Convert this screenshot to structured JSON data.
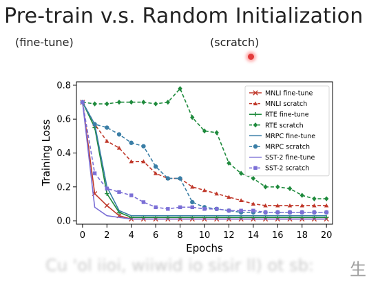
{
  "slide": {
    "title": "Pre-train v.s. Random Initialization",
    "subtitle_left": "(fine-tune)",
    "subtitle_right": "(scratch)",
    "caption": "Cu 'ol iioi, wiiwid io sisir ll) ot sb:",
    "caption_char": "生"
  },
  "chart_data": {
    "type": "line",
    "xlabel": "Epochs",
    "ylabel": "Training Loss",
    "xlim": [
      -0.5,
      20.5
    ],
    "ylim": [
      -0.02,
      0.82
    ],
    "xticks": [
      0,
      2,
      4,
      6,
      8,
      10,
      12,
      14,
      16,
      18,
      20
    ],
    "yticks": [
      0.0,
      0.2,
      0.4,
      0.6,
      0.8
    ],
    "ytick_labels": [
      "0.0",
      "0.2",
      "0.4",
      "0.6",
      "0.8"
    ],
    "grid": false,
    "legend_position": "top-right",
    "x": [
      0,
      1,
      2,
      3,
      4,
      5,
      6,
      7,
      8,
      9,
      10,
      11,
      12,
      13,
      14,
      15,
      16,
      17,
      18,
      19,
      20
    ],
    "series": [
      {
        "name": "MNLI fine-tune",
        "color": "#c0392b",
        "marker": "x",
        "dashed": false,
        "values": [
          0.7,
          0.16,
          0.09,
          0.03,
          0.01,
          0.01,
          0.01,
          0.01,
          0.01,
          0.01,
          0.01,
          0.01,
          0.01,
          0.01,
          0.01,
          0.01,
          0.01,
          0.01,
          0.01,
          0.01,
          0.01
        ]
      },
      {
        "name": "MNLI scratch",
        "color": "#c0392b",
        "marker": "triangle",
        "dashed": true,
        "values": [
          0.7,
          0.57,
          0.47,
          0.43,
          0.35,
          0.35,
          0.28,
          0.25,
          0.25,
          0.2,
          0.18,
          0.16,
          0.14,
          0.12,
          0.1,
          0.09,
          0.09,
          0.09,
          0.09,
          0.09,
          0.09
        ]
      },
      {
        "name": "RTE fine-tune",
        "color": "#1e8a3c",
        "marker": "plus",
        "dashed": false,
        "values": [
          0.7,
          0.55,
          0.16,
          0.05,
          0.02,
          0.02,
          0.02,
          0.02,
          0.02,
          0.02,
          0.02,
          0.02,
          0.02,
          0.02,
          0.02,
          0.02,
          0.02,
          0.02,
          0.02,
          0.02,
          0.02
        ]
      },
      {
        "name": "RTE scratch",
        "color": "#1e8a3c",
        "marker": "diamond",
        "dashed": true,
        "values": [
          0.7,
          0.69,
          0.69,
          0.7,
          0.7,
          0.7,
          0.69,
          0.7,
          0.78,
          0.61,
          0.53,
          0.52,
          0.34,
          0.28,
          0.25,
          0.2,
          0.2,
          0.19,
          0.15,
          0.13,
          0.13
        ]
      },
      {
        "name": "MRPC fine-tune",
        "color": "#3a7ea6",
        "marker": "line",
        "dashed": false,
        "values": [
          0.7,
          0.57,
          0.2,
          0.06,
          0.03,
          0.03,
          0.03,
          0.03,
          0.03,
          0.03,
          0.03,
          0.03,
          0.03,
          0.03,
          0.03,
          0.03,
          0.03,
          0.03,
          0.03,
          0.03,
          0.03
        ]
      },
      {
        "name": "MRPC scratch",
        "color": "#3a7ea6",
        "marker": "circle",
        "dashed": true,
        "values": [
          0.7,
          0.57,
          0.55,
          0.51,
          0.46,
          0.44,
          0.32,
          0.25,
          0.25,
          0.11,
          0.08,
          0.07,
          0.06,
          0.05,
          0.05,
          0.05,
          0.05,
          0.05,
          0.05,
          0.05,
          0.05
        ]
      },
      {
        "name": "SST-2 fine-tune",
        "color": "#7b6fd6",
        "marker": "none",
        "dashed": false,
        "values": [
          0.7,
          0.08,
          0.03,
          0.02,
          0.01,
          0.01,
          0.01,
          0.01,
          0.01,
          0.01,
          0.01,
          0.01,
          0.01,
          0.01,
          0.01,
          0.01,
          0.01,
          0.01,
          0.01,
          0.01,
          0.01
        ]
      },
      {
        "name": "SST-2 scratch",
        "color": "#7b6fd6",
        "marker": "square",
        "dashed": true,
        "values": [
          0.7,
          0.28,
          0.19,
          0.17,
          0.15,
          0.11,
          0.08,
          0.07,
          0.08,
          0.08,
          0.07,
          0.07,
          0.06,
          0.06,
          0.06,
          0.05,
          0.05,
          0.05,
          0.05,
          0.05,
          0.05
        ]
      }
    ]
  }
}
